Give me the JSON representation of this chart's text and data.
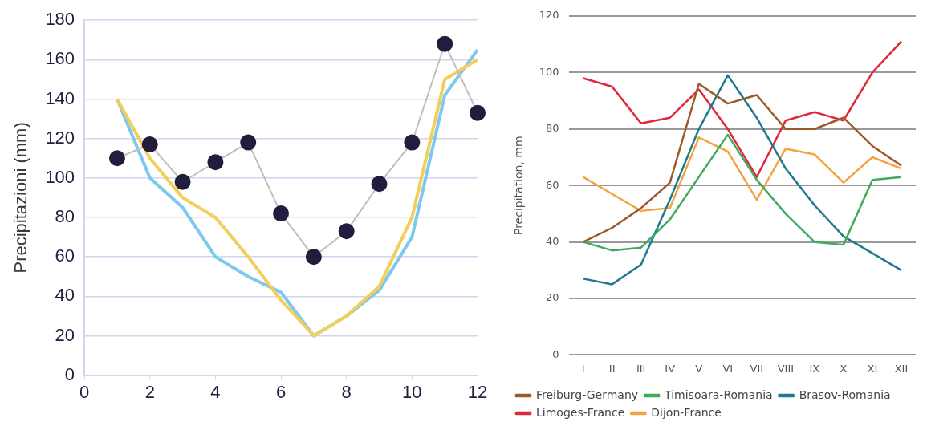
{
  "chart_data": [
    {
      "type": "line",
      "ylabel": "Precipitazioni (mm)",
      "x": [
        1,
        2,
        3,
        4,
        5,
        6,
        7,
        8,
        9,
        10,
        11,
        12
      ],
      "xlim": [
        0,
        12
      ],
      "xticks": [
        0,
        2,
        4,
        6,
        8,
        10,
        12
      ],
      "ylim": [
        0,
        180
      ],
      "yticks": [
        0,
        20,
        40,
        60,
        80,
        100,
        120,
        140,
        160,
        180
      ],
      "grid": "y",
      "legend": false,
      "series": [
        {
          "color": "#bfbfbf",
          "marker": "circle",
          "values": [
            110,
            117,
            98,
            108,
            118,
            82,
            60,
            73,
            97,
            118,
            168,
            133
          ]
        },
        {
          "color": "#f2cf5b",
          "marker": "none",
          "values": [
            140,
            110,
            90,
            80,
            60,
            38,
            20,
            30,
            45,
            80,
            150,
            160
          ]
        },
        {
          "color": "#7cc8f0",
          "marker": "none",
          "values": [
            140,
            100,
            85,
            60,
            50,
            42,
            20,
            30,
            43,
            70,
            142,
            165
          ]
        }
      ]
    },
    {
      "type": "line",
      "ylabel": "Precipitation, mm",
      "categories": [
        "I",
        "II",
        "III",
        "IV",
        "V",
        "VI",
        "VII",
        "VIII",
        "IX",
        "X",
        "XI",
        "XII"
      ],
      "ylim": [
        0,
        120
      ],
      "yticks": [
        0,
        20,
        40,
        60,
        80,
        100,
        120
      ],
      "grid": "y",
      "legend": "bottom",
      "marker": "none",
      "series": [
        {
          "name": "Freiburg-Germany",
          "color": "#9c5a2a",
          "values": [
            40,
            45,
            52,
            61,
            96,
            89,
            92,
            80,
            80,
            84,
            74,
            67
          ]
        },
        {
          "name": "Timisoara-Romania",
          "color": "#3daa5c",
          "values": [
            40,
            37,
            38,
            48,
            63,
            78,
            62,
            50,
            40,
            39,
            62,
            63
          ]
        },
        {
          "name": "Brasov-Romania",
          "color": "#1f7a8c",
          "values": [
            27,
            25,
            32,
            55,
            80,
            99,
            84,
            66,
            53,
            42,
            36,
            30
          ]
        },
        {
          "name": "Limoges-France",
          "color": "#e0283c",
          "values": [
            98,
            95,
            82,
            84,
            94,
            80,
            63,
            83,
            86,
            83,
            100,
            111
          ]
        },
        {
          "name": "Dijon-France",
          "color": "#f4a340",
          "values": [
            63,
            57,
            51,
            52,
            77,
            72,
            55,
            73,
            71,
            61,
            70,
            66
          ]
        }
      ]
    }
  ]
}
